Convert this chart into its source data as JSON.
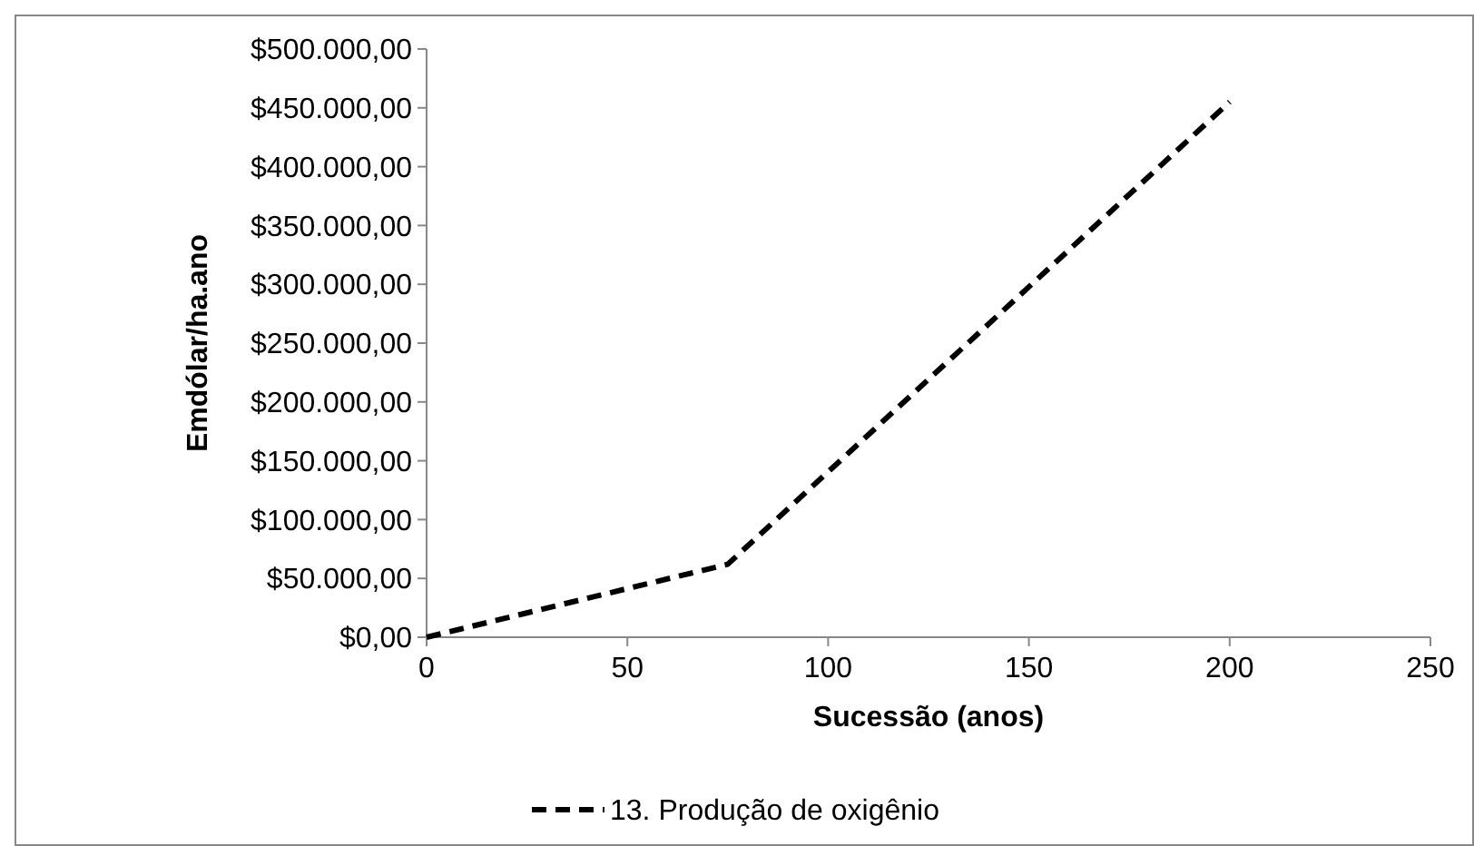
{
  "chart_data": {
    "type": "line",
    "xlabel": "Sucessão (anos)",
    "ylabel": "Emdólar/ha.ano",
    "x": [
      0,
      75,
      200
    ],
    "series": [
      {
        "name": "13. Produção de oxigênio",
        "color": "#000000",
        "values": [
          0,
          62000,
          455000
        ]
      }
    ],
    "xlim": [
      0,
      250
    ],
    "xticks": [
      0,
      50,
      100,
      150,
      200,
      250
    ],
    "ylim": [
      0,
      500000
    ],
    "yticks": [
      {
        "value": 0,
        "label": "$0,00"
      },
      {
        "value": 50000,
        "label": "$50.000,00"
      },
      {
        "value": 100000,
        "label": "$100.000,00"
      },
      {
        "value": 150000,
        "label": "$150.000,00"
      },
      {
        "value": 200000,
        "label": "$200.000,00"
      },
      {
        "value": 250000,
        "label": "$250.000,00"
      },
      {
        "value": 300000,
        "label": "$300.000,00"
      },
      {
        "value": 350000,
        "label": "$350.000,00"
      },
      {
        "value": 400000,
        "label": "$400.000,00"
      },
      {
        "value": 450000,
        "label": "$450.000,00"
      },
      {
        "value": 500000,
        "label": "$500.000,00"
      }
    ],
    "grid": false,
    "legend": "bottom",
    "marker": "none",
    "line_style": "dashed"
  }
}
